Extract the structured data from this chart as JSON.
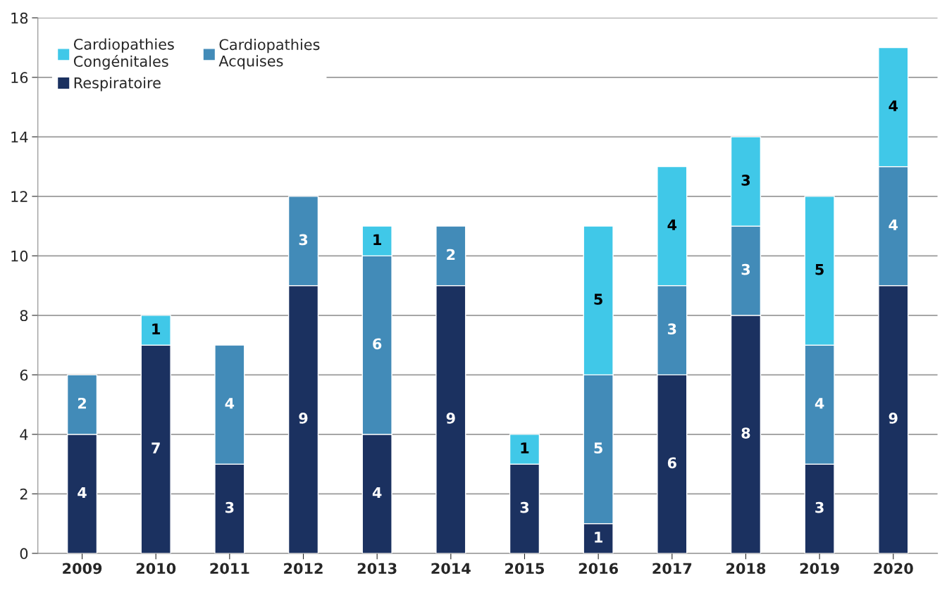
{
  "chart_data": {
    "type": "bar",
    "stacked": true,
    "categories": [
      "2009",
      "2010",
      "2011",
      "2012",
      "2013",
      "2014",
      "2015",
      "2016",
      "2017",
      "2018",
      "2019",
      "2020"
    ],
    "series": [
      {
        "name": "Respiratoire",
        "color": "#1b3160",
        "values": [
          4,
          7,
          3,
          9,
          4,
          9,
          3,
          1,
          6,
          8,
          3,
          9
        ]
      },
      {
        "name": "Cardiopathies Acquises",
        "color": "#428bb8",
        "values": [
          2,
          null,
          4,
          3,
          6,
          2,
          null,
          5,
          3,
          3,
          4,
          4
        ]
      },
      {
        "name": "Cardiopathies Congénitales",
        "color": "#40c8e8",
        "values": [
          null,
          1,
          null,
          null,
          1,
          null,
          1,
          5,
          4,
          3,
          5,
          4
        ]
      }
    ],
    "ylim": [
      0,
      18
    ],
    "yticks": [
      0,
      2,
      4,
      6,
      8,
      10,
      12,
      14,
      16,
      18
    ],
    "grid": "y",
    "legend": "top left",
    "data_labels": true
  }
}
